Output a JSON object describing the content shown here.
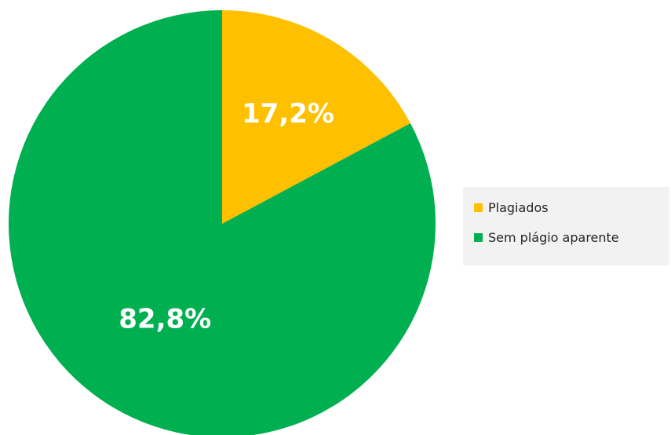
{
  "chart_data": {
    "type": "pie",
    "title": "",
    "categories": [
      "Plagiados",
      "Sem plágio aparente"
    ],
    "values": [
      17.2,
      82.8
    ],
    "unit": "%",
    "data_labels": [
      "17,2%",
      "82,8%"
    ],
    "colors": [
      "#FFC000",
      "#00B050"
    ],
    "start_angle": "12 o'clock",
    "direction": "clockwise",
    "legend": {
      "placement": "right",
      "entries": [
        "Plagiados",
        "Sem plágio aparente"
      ]
    }
  }
}
